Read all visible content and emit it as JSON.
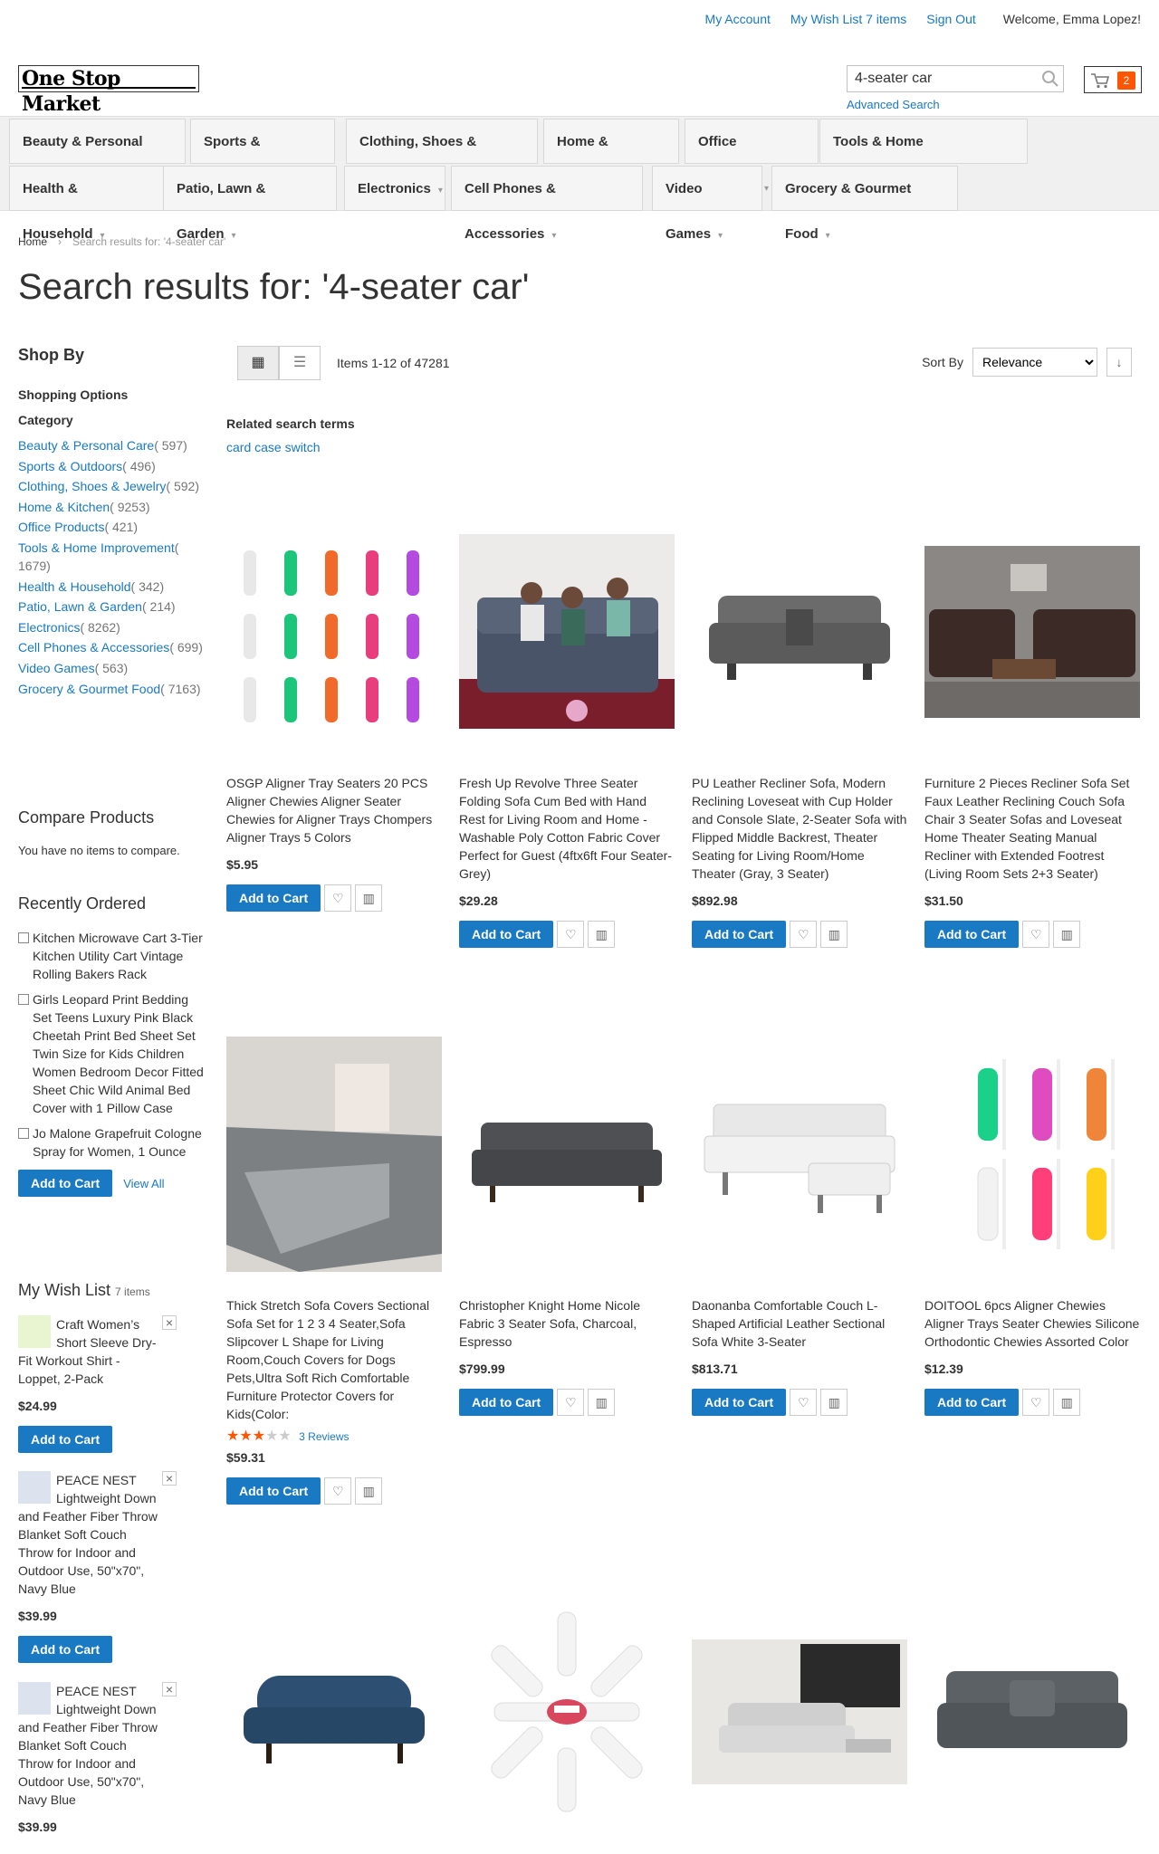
{
  "header": {
    "my_account": "My Account",
    "wish_list": "My Wish List 7 items",
    "sign_out": "Sign Out",
    "welcome": "Welcome, Emma Lopez!",
    "logo": "One Stop Market",
    "search_value": "4-seater car",
    "advanced_search": "Advanced Search",
    "cart_count": "2"
  },
  "nav": [
    "Beauty & Personal Care",
    "Sports & Outdoors",
    "Clothing, Shoes & Jewelry",
    "Home & Kitchen",
    "Office Products",
    "Tools & Home Improvement",
    "Health & Household",
    "Patio, Lawn & Garden",
    "Electronics",
    "Cell Phones & Accessories",
    "Video Games",
    "Grocery & Gourmet Food"
  ],
  "breadcrumb": {
    "home": "Home",
    "current": "Search results for: '4-seater car'"
  },
  "page_title": "Search results for: '4-seater car'",
  "sidebar": {
    "shop_by": "Shop By",
    "shopping_options": "Shopping Options",
    "category": "Category",
    "categories": [
      {
        "label": "Beauty & Personal Care",
        "count": "( 597)"
      },
      {
        "label": "Sports & Outdoors",
        "count": "( 496)"
      },
      {
        "label": "Clothing, Shoes & Jewelry",
        "count": "( 592)"
      },
      {
        "label": "Home & Kitchen",
        "count": "( 9253)"
      },
      {
        "label": "Office Products",
        "count": "( 421)"
      },
      {
        "label": "Tools & Home Improvement",
        "count": "( 1679)"
      },
      {
        "label": "Health & Household",
        "count": "( 342)"
      },
      {
        "label": "Patio, Lawn & Garden",
        "count": "( 214)"
      },
      {
        "label": "Electronics",
        "count": "( 8262)"
      },
      {
        "label": "Cell Phones & Accessories",
        "count": "( 699)"
      },
      {
        "label": "Video Games",
        "count": "( 563)"
      },
      {
        "label": "Grocery & Gourmet Food",
        "count": "( 7163)"
      }
    ],
    "compare_title": "Compare Products",
    "compare_empty": "You have no items to compare.",
    "recent_title": "Recently Ordered",
    "recent": [
      "Kitchen Microwave Cart 3-Tier Kitchen Utility Cart Vintage Rolling Bakers Rack",
      "Girls Leopard Print Bedding Set Teens Luxury Pink Black Cheetah Print Bed Sheet Set Twin Size for Kids Children Women Bedroom Decor Fitted Sheet Chic Wild Animal Bed Cover with 1 Pillow Case",
      "Jo Malone Grapefruit Cologne Spray for Women, 1 Ounce"
    ],
    "add_to_cart": "Add to Cart",
    "view_all": "View All",
    "wish_title": "My Wish List",
    "wish_count": "7 items",
    "wish": [
      {
        "name": "Craft Women’s Short Sleeve Dry-Fit Workout Shirt - Loppet, 2-Pack",
        "price": "$24.99"
      },
      {
        "name": "PEACE NEST Lightweight Down and Feather Fiber Throw Blanket Soft Couch Throw for Indoor and Outdoor Use, 50\"x70\", Navy Blue",
        "price": "$39.99"
      },
      {
        "name": "PEACE NEST Lightweight Down and Feather Fiber Throw Blanket Soft Couch Throw for Indoor and Outdoor Use, 50\"x70\", Navy Blue",
        "price": "$39.99"
      }
    ]
  },
  "toolbar": {
    "amount": "Items 1-12 of 47281",
    "sort_label": "Sort By",
    "sort_value": "Relevance"
  },
  "related": {
    "label": "Related search terms",
    "term": "card case switch"
  },
  "products": [
    {
      "name": "OSGP Aligner Tray Seaters 20 PCS Aligner Chewies Aligner Seater Chewies for Aligner Trays Chompers Aligner Trays 5 Colors",
      "price": "$5.95"
    },
    {
      "name": "Fresh Up Revolve Three Seater Folding Sofa Cum Bed with Hand Rest for Living Room and Home - Washable Poly Cotton Fabric Cover Perfect for Guest (4ftx6ft Four Seater- Grey)",
      "price": "$29.28"
    },
    {
      "name": "PU Leather Recliner Sofa, Modern Reclining Loveseat with Cup Holder and Console Slate, 2-Seater Sofa with Flipped Middle Backrest, Theater Seating for Living Room/Home Theater (Gray, 3 Seater)",
      "price": "$892.98"
    },
    {
      "name": "Furniture 2 Pieces Recliner Sofa Set Faux Leather Reclining Couch Sofa Chair 3 Seater Sofas and Loveseat Home Theater Seating Manual Recliner with Extended Footrest (Living Room Sets 2+3 Seater)",
      "price": "$31.50"
    },
    {
      "name": "Thick Stretch Sofa Covers Sectional Sofa Set for 1 2 3 4 Seater,Sofa Slipcover L Shape for Living Room,Couch Covers for Dogs Pets,Ultra Soft Rich Comfortable Furniture Protector Covers for Kids(Color:",
      "price": "$59.31",
      "rating": 3,
      "reviews": "3  Reviews"
    },
    {
      "name": "Christopher Knight Home Nicole Fabric 3 Seater Sofa, Charcoal, Espresso",
      "price": "$799.99"
    },
    {
      "name": "Daonanba Comfortable Couch L-Shaped Artificial Leather Sectional Sofa White 3-Seater",
      "price": "$813.71"
    },
    {
      "name": "DOITOOL 6pcs Aligner Chewies Aligner Trays Seater Chewies Silicone Orthodontic Chewies Assorted Color",
      "price": "$12.39"
    },
    {
      "name": "",
      "price": ""
    },
    {
      "name": "",
      "price": ""
    },
    {
      "name": "",
      "price": ""
    },
    {
      "name": "",
      "price": ""
    }
  ],
  "colors": {
    "link": "#1979c3",
    "button": "#1979c3",
    "cart_badge": "#ff5501",
    "star": "#ff5501"
  }
}
